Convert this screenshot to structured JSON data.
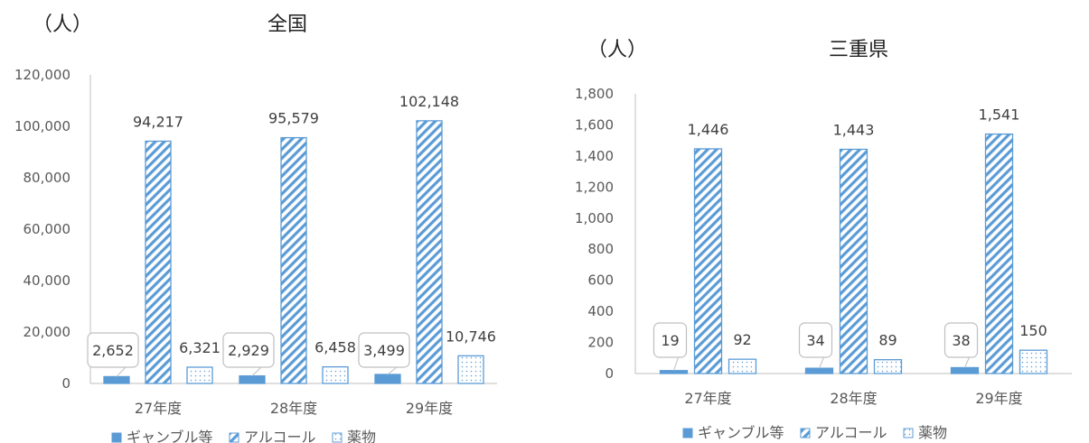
{
  "chart_data": [
    {
      "type": "bar",
      "title": "全国",
      "ylabel": "（人）",
      "xlabel": "",
      "categories": [
        "27年度",
        "28年度",
        "29年度"
      ],
      "ylim": [
        0,
        120000
      ],
      "yticks": [
        "0",
        "20,000",
        "40,000",
        "60,000",
        "80,000",
        "100,000",
        "120,000"
      ],
      "series": [
        {
          "name": "ギャンブル等",
          "values": [
            2652,
            2929,
            3499
          ],
          "labels": [
            "2,652",
            "2,929",
            "3,499"
          ],
          "pattern": "solid",
          "callout": true
        },
        {
          "name": "アルコール",
          "values": [
            94217,
            95579,
            102148
          ],
          "labels": [
            "94,217",
            "95,579",
            "102,148"
          ],
          "pattern": "diagonal",
          "callout": false
        },
        {
          "name": "薬物",
          "values": [
            6321,
            6458,
            10746
          ],
          "labels": [
            "6,321",
            "6,458",
            "10,746"
          ],
          "pattern": "dotted",
          "callout": false
        }
      ],
      "grid": false,
      "legend": "bottom"
    },
    {
      "type": "bar",
      "title": "三重県",
      "ylabel": "（人）",
      "xlabel": "",
      "categories": [
        "27年度",
        "28年度",
        "29年度"
      ],
      "ylim": [
        0,
        1800
      ],
      "yticks": [
        "0",
        "200",
        "400",
        "600",
        "800",
        "1,000",
        "1,200",
        "1,400",
        "1,600",
        "1,800"
      ],
      "series": [
        {
          "name": "ギャンブル等",
          "values": [
            19,
            34,
            38
          ],
          "labels": [
            "19",
            "34",
            "38"
          ],
          "pattern": "solid",
          "callout": true
        },
        {
          "name": "アルコール",
          "values": [
            1446,
            1443,
            1541
          ],
          "labels": [
            "1,446",
            "1,443",
            "1,541"
          ],
          "pattern": "diagonal",
          "callout": false
        },
        {
          "name": "薬物",
          "values": [
            92,
            89,
            150
          ],
          "labels": [
            "92",
            "89",
            "150"
          ],
          "pattern": "dotted",
          "callout": false
        }
      ],
      "grid": false,
      "legend": "bottom"
    }
  ],
  "colors": {
    "bar": "#5B9BD5",
    "text": "#595959",
    "axis": "#BFBFBF"
  }
}
